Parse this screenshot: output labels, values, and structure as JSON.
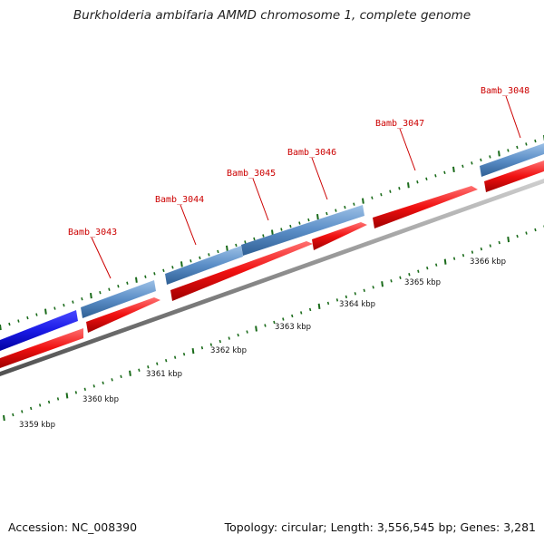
{
  "title": "Burkholderia ambifaria AMMD chromosome 1, complete genome",
  "accession_text": "Accession: NC_008390",
  "summary_text": "Topology: circular; Length: 3,556,545 bp; Genes: 3,281",
  "colors": {
    "backbone": "#8a8a8a",
    "cds_forward_blue": "#5b8ec7",
    "cds_dark_blue": "#1a1ae6",
    "cds_red": "#f01010",
    "label_red": "#cc0000",
    "tick_green": "#1a6b1a"
  },
  "scale_ticks": [
    {
      "kbp": 3359,
      "label": "3359 kbp"
    },
    {
      "kbp": 3360,
      "label": "3360 kbp"
    },
    {
      "kbp": 3361,
      "label": "3361 kbp"
    },
    {
      "kbp": 3362,
      "label": "3362 kbp"
    },
    {
      "kbp": 3363,
      "label": "3363 kbp"
    },
    {
      "kbp": 3364,
      "label": "3364 kbp"
    },
    {
      "kbp": 3365,
      "label": "3365 kbp"
    },
    {
      "kbp": 3366,
      "label": "3366 kbp"
    }
  ],
  "gene_labels": [
    {
      "name": "Bamb_3043"
    },
    {
      "name": "Bamb_3044"
    },
    {
      "name": "Bamb_3045"
    },
    {
      "name": "Bamb_3046"
    },
    {
      "name": "Bamb_3047"
    },
    {
      "name": "Bamb_3048"
    }
  ]
}
